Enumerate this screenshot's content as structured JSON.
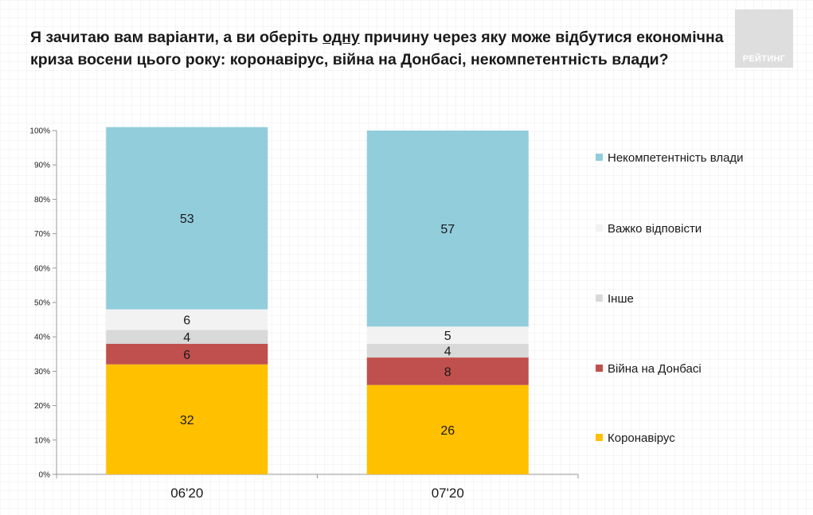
{
  "header": {
    "title_part1": "Я зачитаю вам варіанти, а ви оберіть ",
    "title_underlined": "одну",
    "title_part2": " причину через яку може відбутися економічна криза восени цього року: коронавірус, війна на Донбасі, некомпетентність влади?",
    "logo_text": "РЕЙТИНГ"
  },
  "chart_data": {
    "type": "bar",
    "stacked": true,
    "categories": [
      "06'20",
      "07'20"
    ],
    "series": [
      {
        "name": "Коронавірус",
        "values": [
          32,
          26
        ],
        "color": "#ffc000"
      },
      {
        "name": "Війна на Донбасі",
        "values": [
          6,
          8
        ],
        "color": "#c0504d"
      },
      {
        "name": "Інше",
        "values": [
          4,
          4
        ],
        "color": "#d9d9d9"
      },
      {
        "name": "Важко відповісти",
        "values": [
          6,
          5
        ],
        "color": "#f2f2f2"
      },
      {
        "name": "Некомпетентність влади",
        "values": [
          53,
          57
        ],
        "color": "#92cddc"
      }
    ],
    "yticks": [
      "0%",
      "10%",
      "20%",
      "30%",
      "40%",
      "50%",
      "60%",
      "70%",
      "80%",
      "90%",
      "100%"
    ],
    "ylim": [
      0,
      100
    ],
    "legend_position": "right",
    "legend_order": [
      "Некомпетентність влади",
      "Важко відповісти",
      "Інше",
      "Війна на Донбасі",
      "Коронавірус"
    ]
  }
}
